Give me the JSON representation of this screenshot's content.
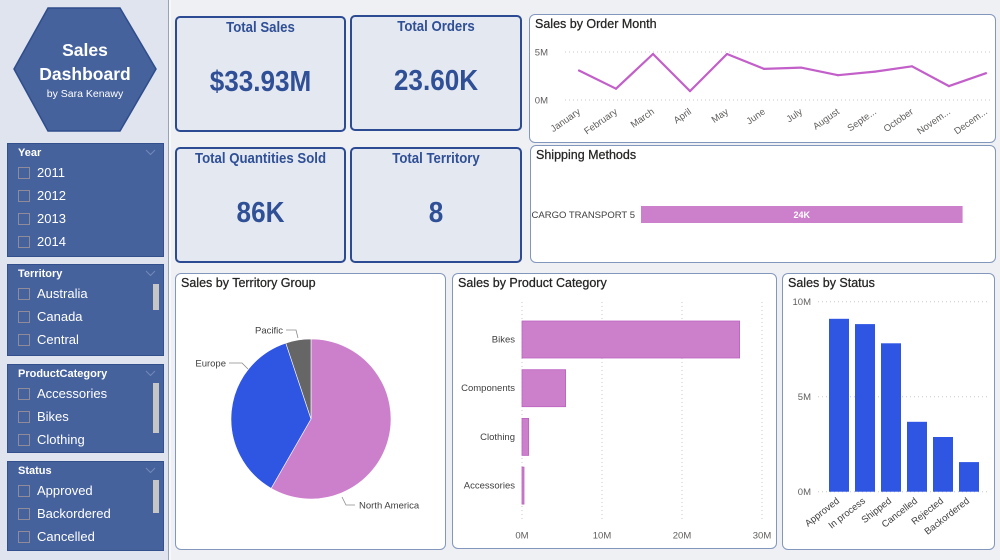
{
  "logo": {
    "line1": "Sales",
    "line2": "Dashboard",
    "subtitle": "by Sara Kenawy"
  },
  "colors": {
    "brand_blue": "#2f4f96",
    "slicer_bg": "#46629d",
    "sidebar_bg": "#dfe4ee",
    "kpi_card_bg": "#e4e8f0",
    "chart_pink": "#cc80cc",
    "chart_blue": "#2f55e3",
    "chart_gray": "#666666"
  },
  "slicers": [
    {
      "title": "Year",
      "items": [
        "2011",
        "2012",
        "2013",
        "2014"
      ]
    },
    {
      "title": "Territory",
      "items": [
        "Australia",
        "Canada",
        "Central"
      ]
    },
    {
      "title": "ProductCategory",
      "items": [
        "Accessories",
        "Bikes",
        "Clothing"
      ]
    },
    {
      "title": "Status",
      "items": [
        "Approved",
        "Backordered",
        "Cancelled"
      ]
    }
  ],
  "kpis": [
    {
      "title": "Total Sales",
      "value": "$33.93M"
    },
    {
      "title": "Total Orders",
      "value": "23.60K"
    },
    {
      "title": "Total Quantities Sold",
      "value": "86K"
    },
    {
      "title": "Total Territory",
      "value": "8"
    }
  ],
  "chart_data": [
    {
      "type": "line",
      "title": "Sales by Order Month",
      "categories": [
        "January",
        "February",
        "March",
        "April",
        "May",
        "June",
        "July",
        "August",
        "Septe...",
        "October",
        "Novem...",
        "Decem..."
      ],
      "series": [
        {
          "name": "Sales",
          "unit": "M",
          "color": "#c25fc9",
          "values": [
            3.07,
            1.18,
            4.79,
            0.93,
            4.79,
            3.24,
            3.38,
            2.58,
            2.96,
            3.51,
            1.45,
            2.79
          ]
        }
      ],
      "xlabel": "",
      "ylabel": "",
      "ylim": [
        0,
        5
      ],
      "y_ticks": [
        "0M",
        "5M"
      ],
      "y_tick_values": [
        0,
        5
      ],
      "grid": true,
      "legend": "none"
    },
    {
      "type": "bar",
      "orientation": "horizontal",
      "title": "Shipping Methods",
      "categories": [
        "CARGO TRANSPORT 5"
      ],
      "values": [
        24
      ],
      "unit": "K",
      "data_labels": [
        "24K"
      ],
      "color": "#cc80cc",
      "xlim": [
        0,
        25
      ],
      "grid": false,
      "legend": "none"
    },
    {
      "type": "pie",
      "title": "Sales by Territory Group",
      "labels": [
        "North America",
        "Europe",
        "Pacific"
      ],
      "values": [
        58.3,
        36.6,
        5.1
      ],
      "unit": "%",
      "colors": [
        "#cc80cc",
        "#2f55e3",
        "#666666"
      ],
      "legend": "none"
    },
    {
      "type": "bar",
      "orientation": "horizontal",
      "title": "Sales by Product Category",
      "categories": [
        "Bikes",
        "Components",
        "Clothing",
        "Accessories"
      ],
      "values": [
        27.2,
        5.45,
        0.83,
        0.25
      ],
      "unit": "M",
      "color": "#cc80cc",
      "xlim": [
        0,
        30
      ],
      "x_ticks": [
        "0M",
        "10M",
        "20M",
        "30M"
      ],
      "x_tick_values": [
        0,
        10,
        20,
        30
      ],
      "grid": true,
      "legend": "none"
    },
    {
      "type": "bar",
      "orientation": "vertical",
      "title": "Sales by Status",
      "categories": [
        "Approved",
        "In process",
        "Shipped",
        "Cancelled",
        "Rejected",
        "Backordered"
      ],
      "values": [
        9.1,
        8.82,
        7.81,
        3.68,
        2.88,
        1.56
      ],
      "unit": "M",
      "color": "#2f55e3",
      "ylim": [
        0,
        10
      ],
      "y_ticks": [
        "0M",
        "5M",
        "10M"
      ],
      "y_tick_values": [
        0,
        5,
        10
      ],
      "grid": true,
      "legend": "none"
    }
  ]
}
